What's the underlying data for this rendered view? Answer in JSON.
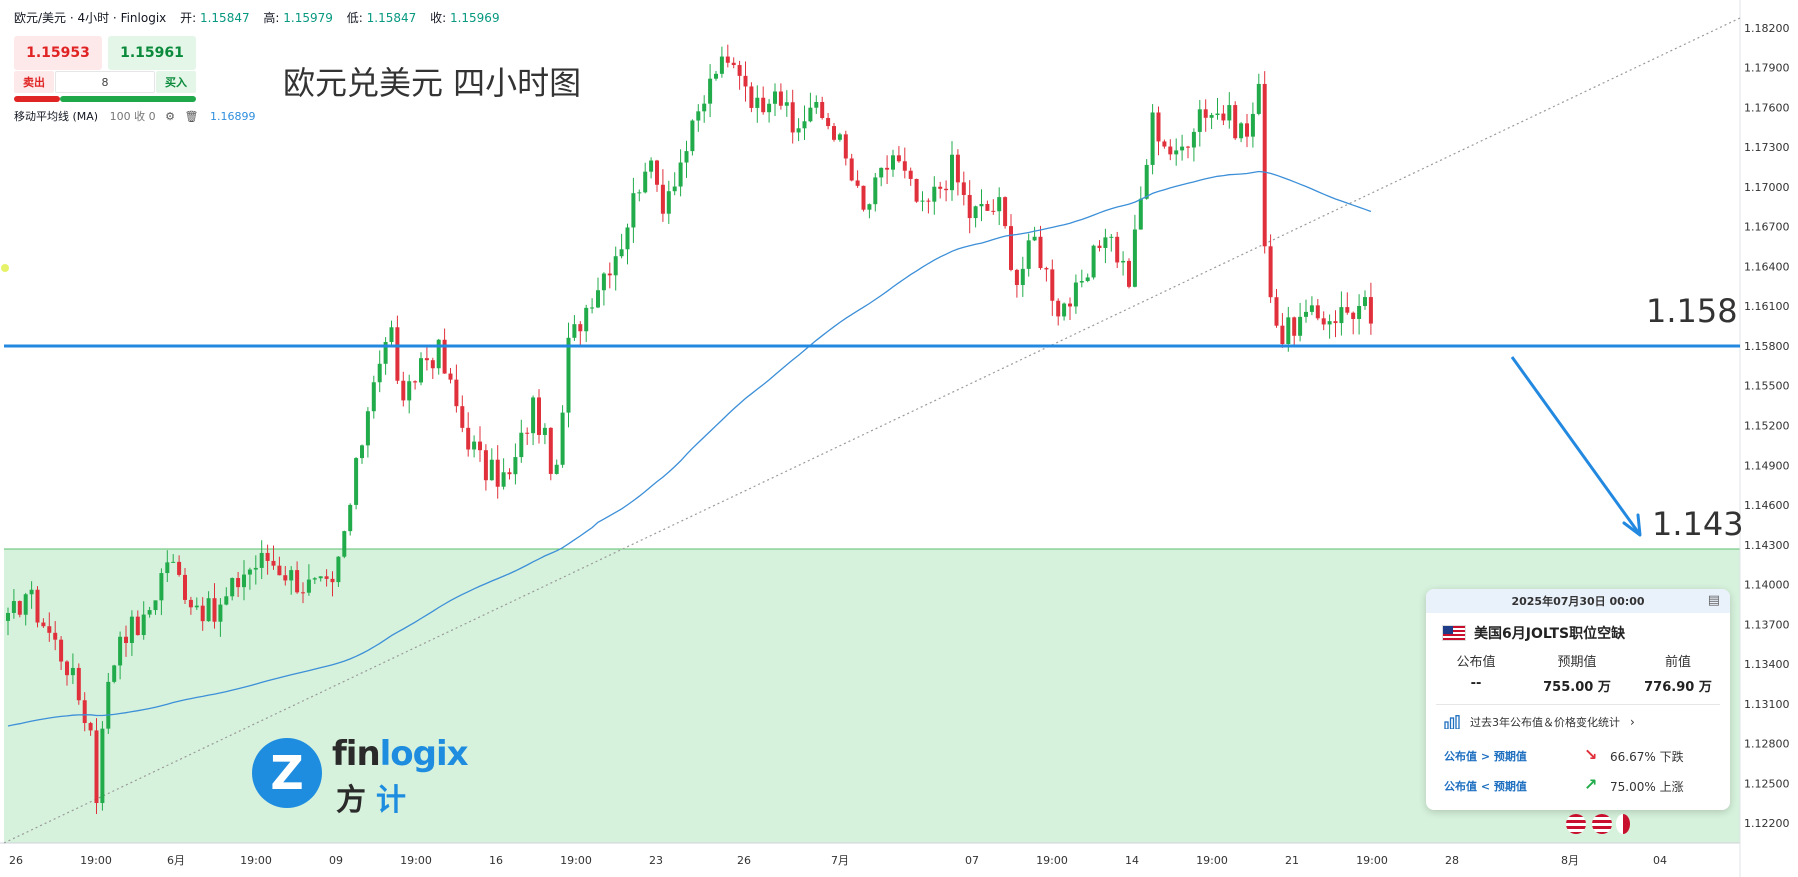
{
  "header": {
    "symbol": "欧元/美元 · 4小时 · Finlogix",
    "open_label": "开:",
    "open": "1.15847",
    "high_label": "高:",
    "high": "1.15979",
    "low_label": "低:",
    "low": "1.15847",
    "close_label": "收:",
    "close": "1.15969"
  },
  "trade_panel": {
    "sell_price": "1.15953",
    "buy_price": "1.15961",
    "sell_label": "卖出",
    "buy_label": "买入",
    "quantity": "8"
  },
  "indicator": {
    "name": "移动平均线 (MA)",
    "params": "100 收 0",
    "value": "1.16899"
  },
  "title": "欧元兑美元 四小时图",
  "annotations": {
    "resistance_label": "1.158",
    "target_label": "1.143"
  },
  "logo": {
    "mark": "Z",
    "text_a": "fin",
    "text_b": "logix",
    "cn_a": "方",
    "cn_b": "计"
  },
  "event_card": {
    "date": "2025年07月30日 00:00",
    "title": "美国6月JOLTS职位空缺",
    "col1_label": "公布值",
    "col1_value": "--",
    "col2_label": "预期值",
    "col2_value": "755.00 万",
    "col3_label": "前值",
    "col3_value": "776.90 万",
    "stats_link": "过去3年公布值＆价格变化统计",
    "row1_label": "公布值 > 预期值",
    "row1_value": "66.67% 下跌",
    "row2_label": "公布值 < 预期值",
    "row2_value": "75.00% 上涨"
  },
  "colors": {
    "up": "#22ab4b",
    "down": "#e0303b",
    "ma": "#3c8fd8",
    "horizontal_line": "#2389e0",
    "zone": "#d6f2dc",
    "accent": "#1e8de0"
  },
  "chart_data": {
    "type": "candlestick",
    "symbol": "EUR/USD",
    "timeframe": "4H",
    "y_ticks": [
      "1.18200",
      "1.17900",
      "1.17600",
      "1.17300",
      "1.17000",
      "1.16700",
      "1.16400",
      "1.16100",
      "1.15800",
      "1.15500",
      "1.15200",
      "1.14900",
      "1.14600",
      "1.14300",
      "1.14000",
      "1.13700",
      "1.13400",
      "1.13100",
      "1.12800",
      "1.12500",
      "1.12200"
    ],
    "ylim": [
      1.1205,
      1.1835
    ],
    "x_ticks": [
      "26",
      "19:00",
      "6月",
      "19:00",
      "09",
      "19:00",
      "16",
      "19:00",
      "23",
      "26",
      "7月",
      "07",
      "19:00",
      "14",
      "19:00",
      "21",
      "19:00",
      "28",
      "8月",
      "04"
    ],
    "candle_count": 232,
    "ma_period": 100,
    "ma_last": 1.16899,
    "horizontal_level": 1.158,
    "support_zone_top": 1.1425,
    "target_level": 1.143,
    "anchors": [
      [
        0,
        1.137
      ],
      [
        3,
        1.1395
      ],
      [
        10,
        1.134
      ],
      [
        14,
        1.129
      ],
      [
        15,
        1.124
      ],
      [
        16,
        1.13
      ],
      [
        19,
        1.1365
      ],
      [
        23,
        1.137
      ],
      [
        27,
        1.142
      ],
      [
        31,
        1.139
      ],
      [
        35,
        1.1375
      ],
      [
        40,
        1.141
      ],
      [
        44,
        1.142
      ],
      [
        50,
        1.14
      ],
      [
        55,
        1.1395
      ],
      [
        58,
        1.146
      ],
      [
        62,
        1.156
      ],
      [
        65,
        1.159
      ],
      [
        67,
        1.153
      ],
      [
        70,
        1.157
      ],
      [
        73,
        1.1575
      ],
      [
        77,
        1.152
      ],
      [
        81,
        1.1485
      ],
      [
        85,
        1.148
      ],
      [
        89,
        1.1535
      ],
      [
        93,
        1.148
      ],
      [
        95,
        1.158
      ],
      [
        99,
        1.162
      ],
      [
        104,
        1.166
      ],
      [
        108,
        1.172
      ],
      [
        111,
        1.169
      ],
      [
        116,
        1.174
      ],
      [
        120,
        1.179
      ],
      [
        124,
        1.179
      ],
      [
        127,
        1.176
      ],
      [
        130,
        1.178
      ],
      [
        133,
        1.174
      ],
      [
        136,
        1.176
      ],
      [
        140,
        1.1745
      ],
      [
        145,
        1.168
      ],
      [
        150,
        1.1725
      ],
      [
        155,
        1.168
      ],
      [
        160,
        1.1715
      ],
      [
        163,
        1.168
      ],
      [
        168,
        1.1685
      ],
      [
        171,
        1.163
      ],
      [
        174,
        1.166
      ],
      [
        178,
        1.161
      ],
      [
        182,
        1.162
      ],
      [
        186,
        1.167
      ],
      [
        190,
        1.163
      ],
      [
        194,
        1.175
      ],
      [
        198,
        1.172
      ],
      [
        202,
        1.176
      ],
      [
        206,
        1.1755
      ],
      [
        210,
        1.174
      ],
      [
        212,
        1.177
      ],
      [
        213,
        1.1665
      ],
      [
        214,
        1.162
      ],
      [
        216,
        1.1585
      ],
      [
        218,
        1.1597
      ]
    ]
  }
}
